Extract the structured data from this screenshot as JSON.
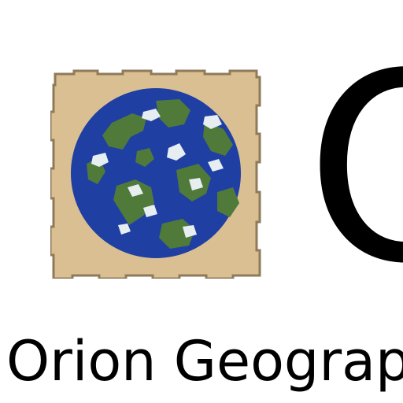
{
  "logo": {
    "icon": "parchment-world-map-icon",
    "colors": {
      "parchment": "#d9bf92",
      "parchment_edge": "#8f7a5a",
      "ocean": "#1f3fa3",
      "land": "#4f7a3a",
      "ice": "#e6eef2"
    }
  },
  "brand": {
    "letter": "O",
    "name": "Orion Geograp"
  }
}
